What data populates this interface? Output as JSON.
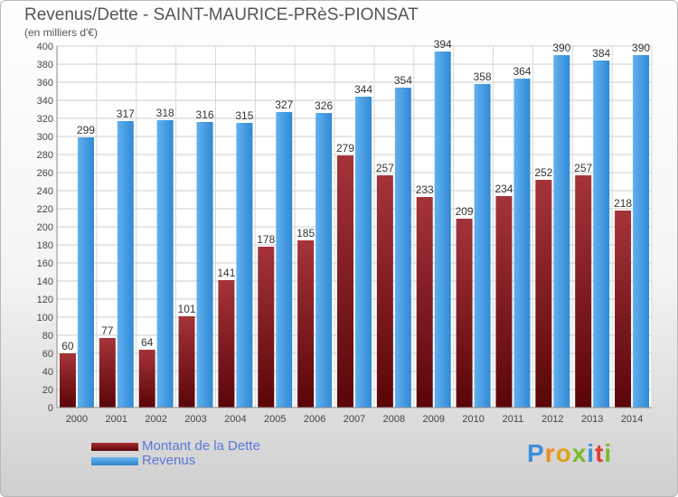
{
  "title": "Revenus/Dette - SAINT-MAURICE-PRèS-PIONSAT",
  "subtitle": "(en milliers d'€)",
  "logo": "Proxiti",
  "chart_data": {
    "type": "bar",
    "categories": [
      "2000",
      "2001",
      "2002",
      "2003",
      "2004",
      "2005",
      "2006",
      "2007",
      "2008",
      "2009",
      "2010",
      "2011",
      "2012",
      "2013",
      "2014"
    ],
    "series": [
      {
        "name": "Montant de la Dette",
        "values": [
          60,
          77,
          64,
          101,
          141,
          178,
          185,
          279,
          257,
          233,
          209,
          234,
          252,
          257,
          218
        ],
        "color": "#7a1418"
      },
      {
        "name": "Revenus",
        "values": [
          299,
          317,
          318,
          316,
          315,
          327,
          326,
          344,
          354,
          394,
          358,
          364,
          390,
          384,
          390
        ],
        "color": "#3b97de"
      }
    ],
    "ylim": [
      0,
      400
    ],
    "yticks": [
      0,
      20,
      40,
      60,
      80,
      100,
      120,
      140,
      160,
      180,
      200,
      220,
      240,
      260,
      280,
      300,
      320,
      340,
      360,
      380,
      400
    ],
    "grid": true,
    "legend": "bottom-left"
  }
}
